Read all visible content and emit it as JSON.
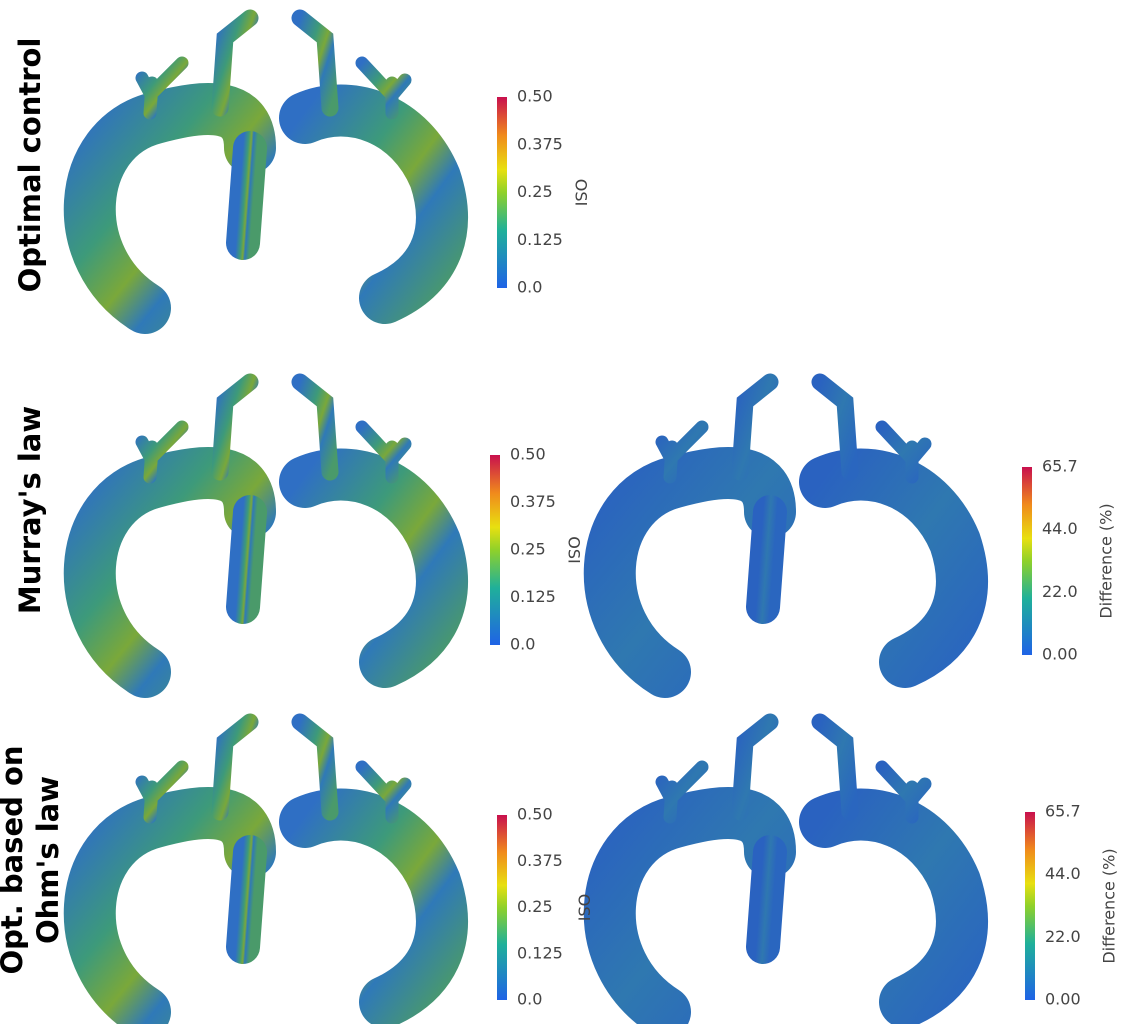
{
  "rows": [
    {
      "label": [
        "Optimal control"
      ],
      "osi": {
        "title": "OSI",
        "ticks": [
          "0.50",
          "0.375",
          "0.25",
          "0.125",
          "0.0"
        ]
      }
    },
    {
      "label": [
        "Murray's law"
      ],
      "osi": {
        "title": "OSI",
        "ticks": [
          "0.50",
          "0.375",
          "0.25",
          "0.125",
          "0.0"
        ]
      },
      "difference": {
        "title": "Difference (%)",
        "ticks": [
          "65.7",
          "44.0",
          "22.0",
          "0.00"
        ]
      }
    },
    {
      "label": [
        "Opt. based on",
        "Ohm's law"
      ],
      "osi": {
        "title": "OSI",
        "ticks": [
          "0.50",
          "0.375",
          "0.25",
          "0.125",
          "0.0"
        ]
      },
      "difference": {
        "title": "Difference (%)",
        "ticks": [
          "65.7",
          "44.0",
          "22.0",
          "0.00"
        ]
      }
    }
  ]
}
